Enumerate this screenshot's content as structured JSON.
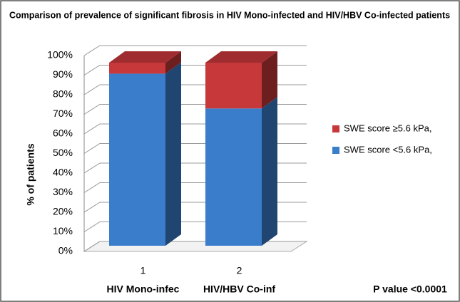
{
  "chart_data": {
    "type": "bar3d_stacked",
    "title": "Comparison of prevalence of significant fibrosis in HIV  Mono-infected  and HIV/HBV  Co-infected patients",
    "y_label": "% of patients",
    "categories": [
      "1",
      "2"
    ],
    "group_labels": [
      "HIV Mono-infec",
      "HIV/HBV Co-inf"
    ],
    "annotation": "P value  <0.0001",
    "series": [
      {
        "name": "SWE score <5.6 kPa,",
        "color": "#3a7dcb",
        "values": [
          94,
          75
        ]
      },
      {
        "name": "SWE score ≥5.6 kPa,",
        "color": "#c7383b",
        "values": [
          6,
          25
        ]
      }
    ],
    "ylim": [
      0,
      100
    ],
    "yticks": [
      {
        "value": 0,
        "label": "0%"
      },
      {
        "value": 10,
        "label": "10%"
      },
      {
        "value": 20,
        "label": "20%"
      },
      {
        "value": 30,
        "label": "30%"
      },
      {
        "value": 40,
        "label": "40%"
      },
      {
        "value": 50,
        "label": "50%"
      },
      {
        "value": 60,
        "label": "60%"
      },
      {
        "value": 70,
        "label": "70%"
      },
      {
        "value": 80,
        "label": "80%"
      },
      {
        "value": 90,
        "label": "90%"
      },
      {
        "value": 100,
        "label": "100%"
      }
    ],
    "grid": true,
    "legend": "right"
  }
}
